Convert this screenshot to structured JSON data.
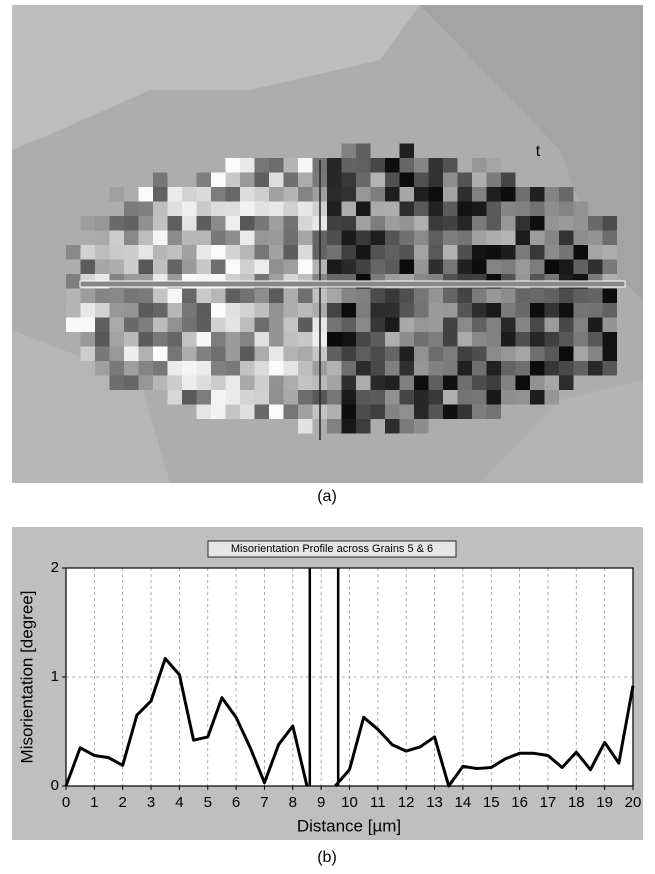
{
  "figure": {
    "panel_a": {
      "label": "(a)",
      "annotation": "t"
    },
    "panel_b": {
      "label": "(b)"
    }
  },
  "chart_data": {
    "type": "line",
    "title": "Misorientation Profile across Grains 5 & 6",
    "xlabel": "Distance [µm]",
    "ylabel": "Misorientation [degree]",
    "x": [
      0,
      0.5,
      1,
      1.5,
      2,
      2.5,
      3,
      3.5,
      4,
      4.5,
      5,
      5.5,
      6,
      6.5,
      7,
      7.5,
      8,
      8.5,
      9,
      9.5,
      10,
      10.5,
      11,
      11.5,
      12,
      12.5,
      13,
      13.5,
      14,
      14.5,
      15,
      15.5,
      16,
      16.5,
      17,
      17.5,
      18,
      18.5,
      19,
      19.5,
      20
    ],
    "series": [
      {
        "color": "#000000",
        "values": [
          0,
          0.35,
          0.28,
          0.26,
          0.19,
          0.65,
          0.78,
          1.17,
          1.02,
          0.42,
          0.45,
          0.81,
          0.63,
          0.35,
          0.03,
          0.38,
          0.55,
          0,
          null,
          0,
          0.15,
          0.63,
          0.52,
          0.38,
          0.32,
          0.36,
          0.45,
          0,
          0.18,
          0.16,
          0.17,
          0.25,
          0.3,
          0.3,
          0.28,
          0.17,
          0.31,
          0.15,
          0.4,
          0.21,
          0.92
        ]
      }
    ],
    "vlines": [
      8.6,
      9.6
    ],
    "xlim": [
      0,
      20
    ],
    "xticks": [
      0,
      1,
      2,
      3,
      4,
      5,
      6,
      7,
      8,
      9,
      10,
      11,
      12,
      13,
      14,
      15,
      16,
      17,
      18,
      19,
      20
    ],
    "ylim": [
      0,
      2
    ],
    "yticks": [
      0,
      1,
      2
    ],
    "grid": true
  }
}
